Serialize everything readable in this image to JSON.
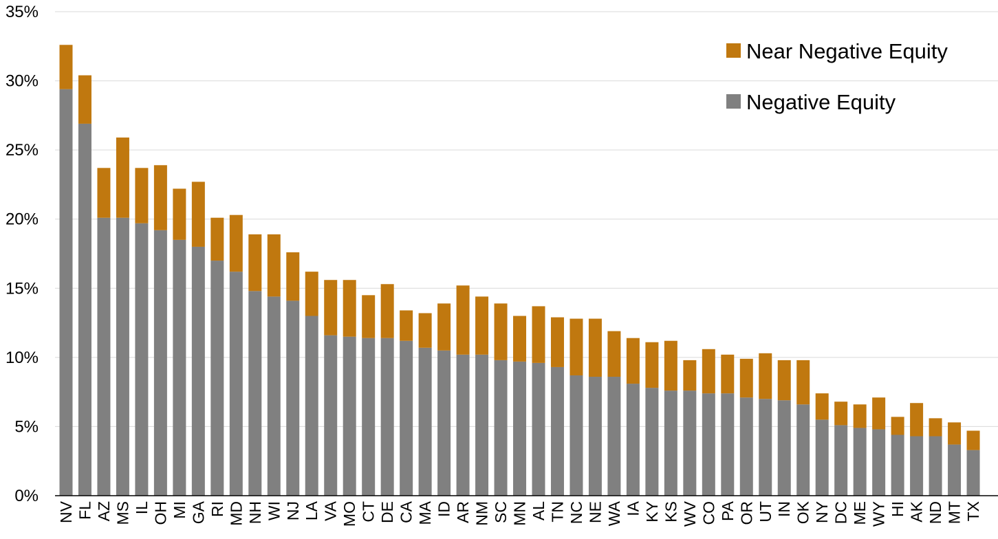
{
  "chart_data": {
    "type": "bar",
    "stacked": true,
    "categories": [
      "NV",
      "FL",
      "AZ",
      "MS",
      "IL",
      "OH",
      "MI",
      "GA",
      "RI",
      "MD",
      "NH",
      "WI",
      "NJ",
      "LA",
      "VA",
      "MO",
      "CT",
      "DE",
      "CA",
      "MA",
      "ID",
      "AR",
      "NM",
      "SC",
      "MN",
      "AL",
      "TN",
      "NC",
      "NE",
      "WA",
      "IA",
      "KY",
      "KS",
      "WV",
      "CO",
      "PA",
      "OR",
      "UT",
      "IN",
      "OK",
      "NY",
      "DC",
      "ME",
      "WY",
      "HI",
      "AK",
      "ND",
      "MT",
      "TX"
    ],
    "series": [
      {
        "name": "Negative Equity",
        "color": "#808080",
        "values": [
          29.4,
          26.9,
          20.1,
          20.1,
          19.7,
          19.2,
          18.5,
          18.0,
          17.0,
          16.2,
          14.8,
          14.4,
          14.1,
          13.0,
          11.6,
          11.5,
          11.4,
          11.4,
          11.2,
          10.7,
          10.5,
          10.2,
          10.2,
          9.8,
          9.7,
          9.6,
          9.3,
          8.7,
          8.6,
          8.6,
          8.1,
          7.8,
          7.6,
          7.6,
          7.4,
          7.4,
          7.1,
          7.0,
          6.9,
          6.6,
          5.5,
          5.1,
          4.9,
          4.8,
          4.4,
          4.3,
          4.3,
          3.7,
          3.3
        ]
      },
      {
        "name": "Near Negative Equity",
        "color": "#c0780f",
        "values": [
          3.2,
          3.5,
          3.6,
          5.8,
          4.0,
          4.7,
          3.7,
          4.7,
          3.1,
          4.1,
          4.1,
          4.5,
          3.5,
          3.2,
          4.0,
          4.1,
          3.1,
          3.9,
          2.2,
          2.5,
          3.4,
          5.0,
          4.2,
          4.1,
          3.3,
          4.1,
          3.6,
          4.1,
          4.2,
          3.3,
          3.3,
          3.3,
          3.6,
          2.2,
          3.2,
          2.8,
          2.8,
          3.3,
          2.9,
          3.2,
          1.9,
          1.7,
          1.7,
          2.3,
          1.3,
          2.4,
          1.3,
          1.6,
          1.4
        ]
      }
    ],
    "y_ticks": [
      "0%",
      "5%",
      "10%",
      "15%",
      "20%",
      "25%",
      "30%",
      "35%"
    ],
    "ylim": [
      0,
      35
    ],
    "grid": true,
    "legend_position": "top-right",
    "legend_order": [
      "Near Negative Equity",
      "Negative Equity"
    ]
  }
}
